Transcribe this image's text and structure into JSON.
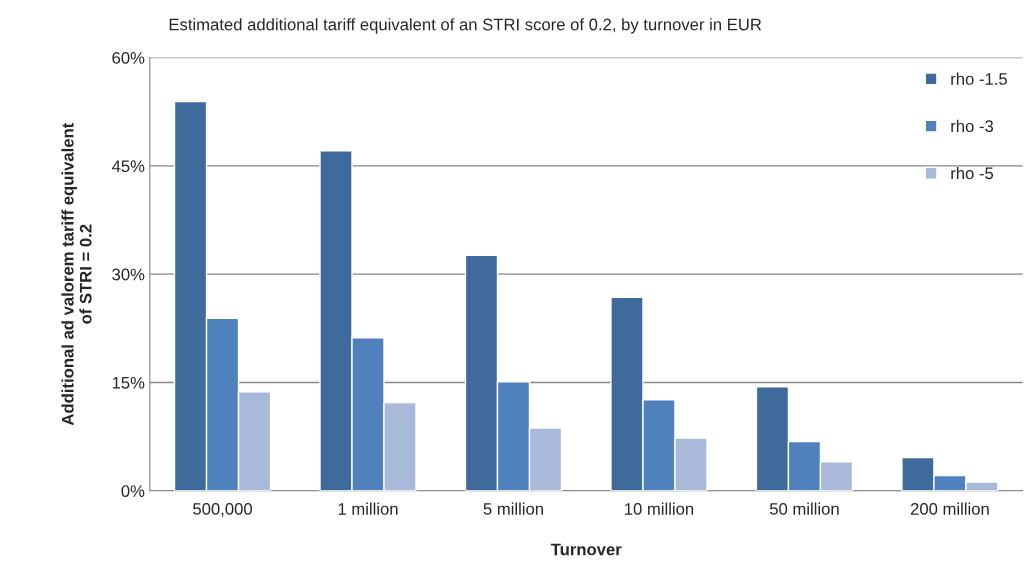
{
  "chart_data": {
    "type": "bar",
    "title": "Estimated additional tariff equivalent of an STRI score of 0.2, by turnover in EUR",
    "xlabel": "Turnover",
    "ylabel": "Additional ad valorem tariff equivalent\nof STRI = 0.2",
    "categories": [
      "500,000",
      "1 million",
      "5 million",
      "10 million",
      "50 million",
      "200 million"
    ],
    "series": [
      {
        "name": "rho -1.5",
        "color": "#3f6a9c",
        "values": [
          53.9,
          47.1,
          32.6,
          26.8,
          14.4,
          4.6
        ]
      },
      {
        "name": "rho -3",
        "color": "#4f81bd",
        "values": [
          23.9,
          21.2,
          15.1,
          12.6,
          6.8,
          2.1
        ]
      },
      {
        "name": "rho -5",
        "color": "#a9b9d9",
        "values": [
          13.7,
          12.2,
          8.7,
          7.3,
          4.0,
          1.2
        ]
      }
    ],
    "ylim": [
      0,
      60
    ],
    "yticks": [
      {
        "value": 0,
        "label": "0%"
      },
      {
        "value": 15,
        "label": "15%"
      },
      {
        "value": 30,
        "label": "30%"
      },
      {
        "value": 45,
        "label": "45%"
      },
      {
        "value": 60,
        "label": "60%"
      }
    ],
    "grid": "y",
    "legend": "top right"
  }
}
